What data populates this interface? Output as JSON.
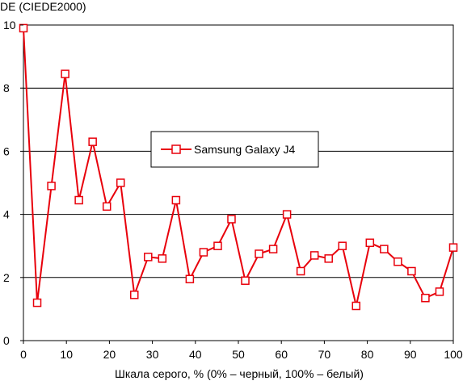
{
  "chart_data": {
    "type": "line",
    "ylabel": "DE (CIEDE2000)",
    "xlabel": "Шкала серого, % (0% – черный, 100% – белый)",
    "xlim": [
      0,
      100
    ],
    "ylim": [
      0,
      10
    ],
    "x_ticks": [
      0,
      10,
      20,
      30,
      40,
      50,
      60,
      70,
      80,
      90,
      100
    ],
    "y_ticks": [
      0,
      2,
      4,
      6,
      8,
      10
    ],
    "grid": "horizontal",
    "legend_position": "center",
    "series": [
      {
        "name": "Samsung Galaxy J4",
        "color": "#e8000b",
        "marker": "open-square",
        "x": [
          0,
          3.2,
          6.5,
          9.7,
          12.9,
          16.1,
          19.4,
          22.6,
          25.8,
          29.0,
          32.3,
          35.5,
          38.7,
          41.9,
          45.2,
          48.4,
          51.6,
          54.8,
          58.1,
          61.3,
          64.5,
          67.7,
          71.0,
          74.2,
          77.4,
          80.6,
          83.9,
          87.1,
          90.3,
          93.5,
          96.8,
          100
        ],
        "y": [
          9.9,
          1.2,
          4.9,
          8.45,
          4.45,
          6.3,
          4.25,
          5.0,
          1.45,
          2.65,
          2.6,
          4.45,
          1.95,
          2.8,
          3.0,
          3.85,
          1.9,
          2.75,
          2.9,
          4.0,
          2.2,
          2.7,
          2.6,
          3.0,
          1.1,
          3.1,
          2.9,
          2.5,
          2.2,
          1.35,
          1.55,
          2.95
        ]
      }
    ]
  }
}
